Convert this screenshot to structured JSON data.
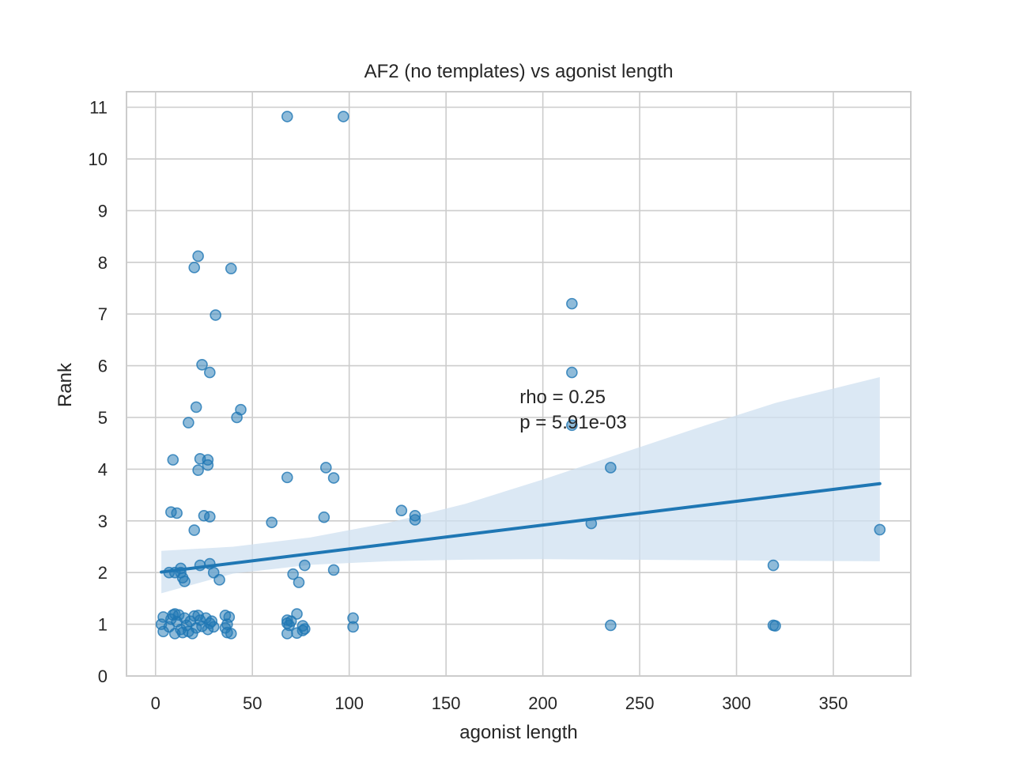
{
  "chart_data": {
    "type": "scatter",
    "title": "AF2 (no templates) vs agonist length",
    "xlabel": "agonist length",
    "ylabel": "Rank",
    "xlim": [
      -15,
      390
    ],
    "ylim": [
      0,
      11.3
    ],
    "xticks": [
      0,
      50,
      100,
      150,
      200,
      250,
      300,
      350
    ],
    "yticks": [
      0,
      1,
      2,
      3,
      4,
      5,
      6,
      7,
      8,
      9,
      10,
      11
    ],
    "grid": true,
    "annotation": {
      "line1": "rho = 0.25",
      "line2": "p = 5.91e-03",
      "x": 188,
      "y": 5.4
    },
    "colors": {
      "points": "#1f77b4",
      "line": "#1f77b4",
      "band": "#cfe0f0",
      "grid": "#cccccc",
      "frame": "#cccccc"
    },
    "regression": {
      "x0": 3,
      "y0": 2.01,
      "x1": 374,
      "y1": 3.72
    },
    "band": {
      "x": [
        3,
        40,
        80,
        120,
        160,
        200,
        240,
        280,
        320,
        374
      ],
      "upper": [
        2.42,
        2.5,
        2.68,
        2.96,
        3.33,
        3.8,
        4.3,
        4.8,
        5.28,
        5.78
      ],
      "lower": [
        1.6,
        1.98,
        2.15,
        2.22,
        2.25,
        2.26,
        2.25,
        2.24,
        2.23,
        2.22
      ]
    },
    "points": [
      {
        "x": 68,
        "y": 10.82
      },
      {
        "x": 97,
        "y": 10.82
      },
      {
        "x": 22,
        "y": 8.12
      },
      {
        "x": 20,
        "y": 7.9
      },
      {
        "x": 39,
        "y": 7.88
      },
      {
        "x": 31,
        "y": 6.98
      },
      {
        "x": 215,
        "y": 7.2
      },
      {
        "x": 24,
        "y": 6.02
      },
      {
        "x": 28,
        "y": 5.87
      },
      {
        "x": 215,
        "y": 5.87
      },
      {
        "x": 21,
        "y": 5.2
      },
      {
        "x": 44,
        "y": 5.15
      },
      {
        "x": 42,
        "y": 5.0
      },
      {
        "x": 17,
        "y": 4.9
      },
      {
        "x": 215,
        "y": 4.85
      },
      {
        "x": 9,
        "y": 4.18
      },
      {
        "x": 23,
        "y": 4.2
      },
      {
        "x": 27,
        "y": 4.18
      },
      {
        "x": 27,
        "y": 4.08
      },
      {
        "x": 22,
        "y": 3.98
      },
      {
        "x": 88,
        "y": 4.03
      },
      {
        "x": 68,
        "y": 3.84
      },
      {
        "x": 92,
        "y": 3.83
      },
      {
        "x": 235,
        "y": 4.03
      },
      {
        "x": 8,
        "y": 3.17
      },
      {
        "x": 11,
        "y": 3.15
      },
      {
        "x": 25,
        "y": 3.1
      },
      {
        "x": 28,
        "y": 3.08
      },
      {
        "x": 20,
        "y": 2.82
      },
      {
        "x": 60,
        "y": 2.97
      },
      {
        "x": 87,
        "y": 3.07
      },
      {
        "x": 127,
        "y": 3.2
      },
      {
        "x": 134,
        "y": 3.1
      },
      {
        "x": 134,
        "y": 3.02
      },
      {
        "x": 225,
        "y": 2.95
      },
      {
        "x": 374,
        "y": 2.83
      },
      {
        "x": 7,
        "y": 2.0
      },
      {
        "x": 10,
        "y": 2.0
      },
      {
        "x": 13,
        "y": 2.08
      },
      {
        "x": 13,
        "y": 2.0
      },
      {
        "x": 14,
        "y": 1.9
      },
      {
        "x": 15,
        "y": 1.83
      },
      {
        "x": 23,
        "y": 2.14
      },
      {
        "x": 28,
        "y": 2.17
      },
      {
        "x": 30,
        "y": 2.0
      },
      {
        "x": 33,
        "y": 1.86
      },
      {
        "x": 71,
        "y": 1.97
      },
      {
        "x": 74,
        "y": 1.81
      },
      {
        "x": 77,
        "y": 2.14
      },
      {
        "x": 92,
        "y": 2.05
      },
      {
        "x": 319,
        "y": 2.14
      },
      {
        "x": 3,
        "y": 1.0
      },
      {
        "x": 4,
        "y": 0.86
      },
      {
        "x": 4,
        "y": 1.14
      },
      {
        "x": 7,
        "y": 0.95
      },
      {
        "x": 8,
        "y": 1.1
      },
      {
        "x": 9,
        "y": 1.18
      },
      {
        "x": 10,
        "y": 1.2
      },
      {
        "x": 10,
        "y": 0.82
      },
      {
        "x": 11,
        "y": 1.05
      },
      {
        "x": 12,
        "y": 1.18
      },
      {
        "x": 13,
        "y": 0.9
      },
      {
        "x": 14,
        "y": 0.84
      },
      {
        "x": 15,
        "y": 1.12
      },
      {
        "x": 16,
        "y": 0.98
      },
      {
        "x": 17,
        "y": 0.86
      },
      {
        "x": 18,
        "y": 1.06
      },
      {
        "x": 19,
        "y": 0.82
      },
      {
        "x": 20,
        "y": 1.16
      },
      {
        "x": 21,
        "y": 0.93
      },
      {
        "x": 22,
        "y": 1.17
      },
      {
        "x": 23,
        "y": 1.08
      },
      {
        "x": 24,
        "y": 0.96
      },
      {
        "x": 26,
        "y": 1.12
      },
      {
        "x": 27,
        "y": 0.9
      },
      {
        "x": 28,
        "y": 1.02
      },
      {
        "x": 29,
        "y": 1.06
      },
      {
        "x": 30,
        "y": 0.95
      },
      {
        "x": 36,
        "y": 1.17
      },
      {
        "x": 37,
        "y": 1.0
      },
      {
        "x": 37,
        "y": 0.84
      },
      {
        "x": 38,
        "y": 1.14
      },
      {
        "x": 39,
        "y": 0.82
      },
      {
        "x": 36,
        "y": 0.93
      },
      {
        "x": 68,
        "y": 1.08
      },
      {
        "x": 68,
        "y": 1.02
      },
      {
        "x": 69,
        "y": 0.98
      },
      {
        "x": 70,
        "y": 1.06
      },
      {
        "x": 68,
        "y": 0.82
      },
      {
        "x": 73,
        "y": 1.2
      },
      {
        "x": 73,
        "y": 0.83
      },
      {
        "x": 76,
        "y": 0.97
      },
      {
        "x": 77,
        "y": 0.91
      },
      {
        "x": 76,
        "y": 0.88
      },
      {
        "x": 102,
        "y": 1.12
      },
      {
        "x": 102,
        "y": 0.95
      },
      {
        "x": 235,
        "y": 0.98
      },
      {
        "x": 319,
        "y": 0.98
      },
      {
        "x": 320,
        "y": 0.97
      }
    ]
  }
}
